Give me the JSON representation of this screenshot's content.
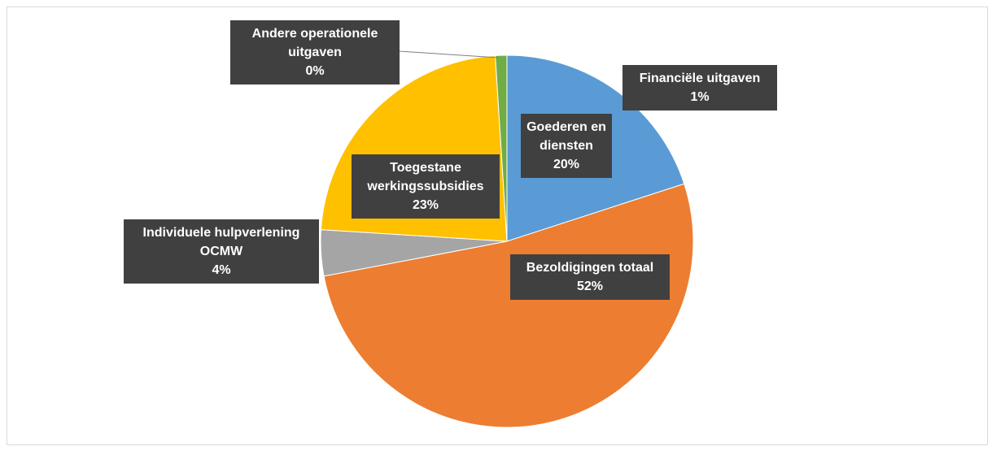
{
  "chart_data": {
    "type": "pie",
    "categories": [
      "Goederen en diensten",
      "Bezoldigingen totaal",
      "Individuele hulpverlening OCMW",
      "Toegestane werkingssubsidies",
      "Andere operationele uitgaven",
      "Financiële uitgaven"
    ],
    "values": [
      20,
      52,
      4,
      23,
      0,
      1
    ],
    "value_labels": [
      "20%",
      "52%",
      "4%",
      "23%",
      "0%",
      "1%"
    ],
    "colors": [
      "#5b9bd5",
      "#ed7d31",
      "#a5a5a5",
      "#ffc000",
      "#4472c4",
      "#70ad47"
    ]
  }
}
